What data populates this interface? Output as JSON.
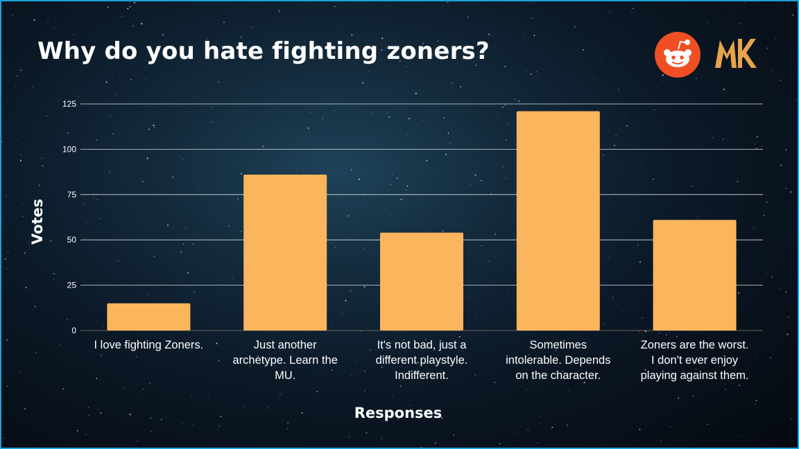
{
  "title": "Why do you hate fighting zoners?",
  "logos": [
    "reddit-icon",
    "mk-icon"
  ],
  "colors": {
    "bar": "#fbb55c",
    "grid": "#ffffff",
    "reddit": "#f04e23",
    "mk": "#e8a44a",
    "border": "#1aa3d8"
  },
  "chart_data": {
    "type": "bar",
    "title": "Why do you hate fighting zoners?",
    "xlabel": "Responses",
    "ylabel": "Votes",
    "categories": [
      [
        "I love fighting Zoners."
      ],
      [
        "Just another",
        "archetype. Learn the",
        "MU."
      ],
      [
        "It's not bad, just a",
        "different playstyle.",
        "Indifferent."
      ],
      [
        "Sometimes",
        "intolerable. Depends",
        "on the character."
      ],
      [
        "Zoners are the worst.",
        "I don't ever enjoy",
        "playing against them."
      ]
    ],
    "values": [
      15,
      86,
      54,
      121,
      61
    ],
    "ylim": [
      0,
      125
    ],
    "yticks": [
      0,
      25,
      50,
      75,
      100,
      125
    ],
    "grid": true,
    "legend": "none"
  }
}
